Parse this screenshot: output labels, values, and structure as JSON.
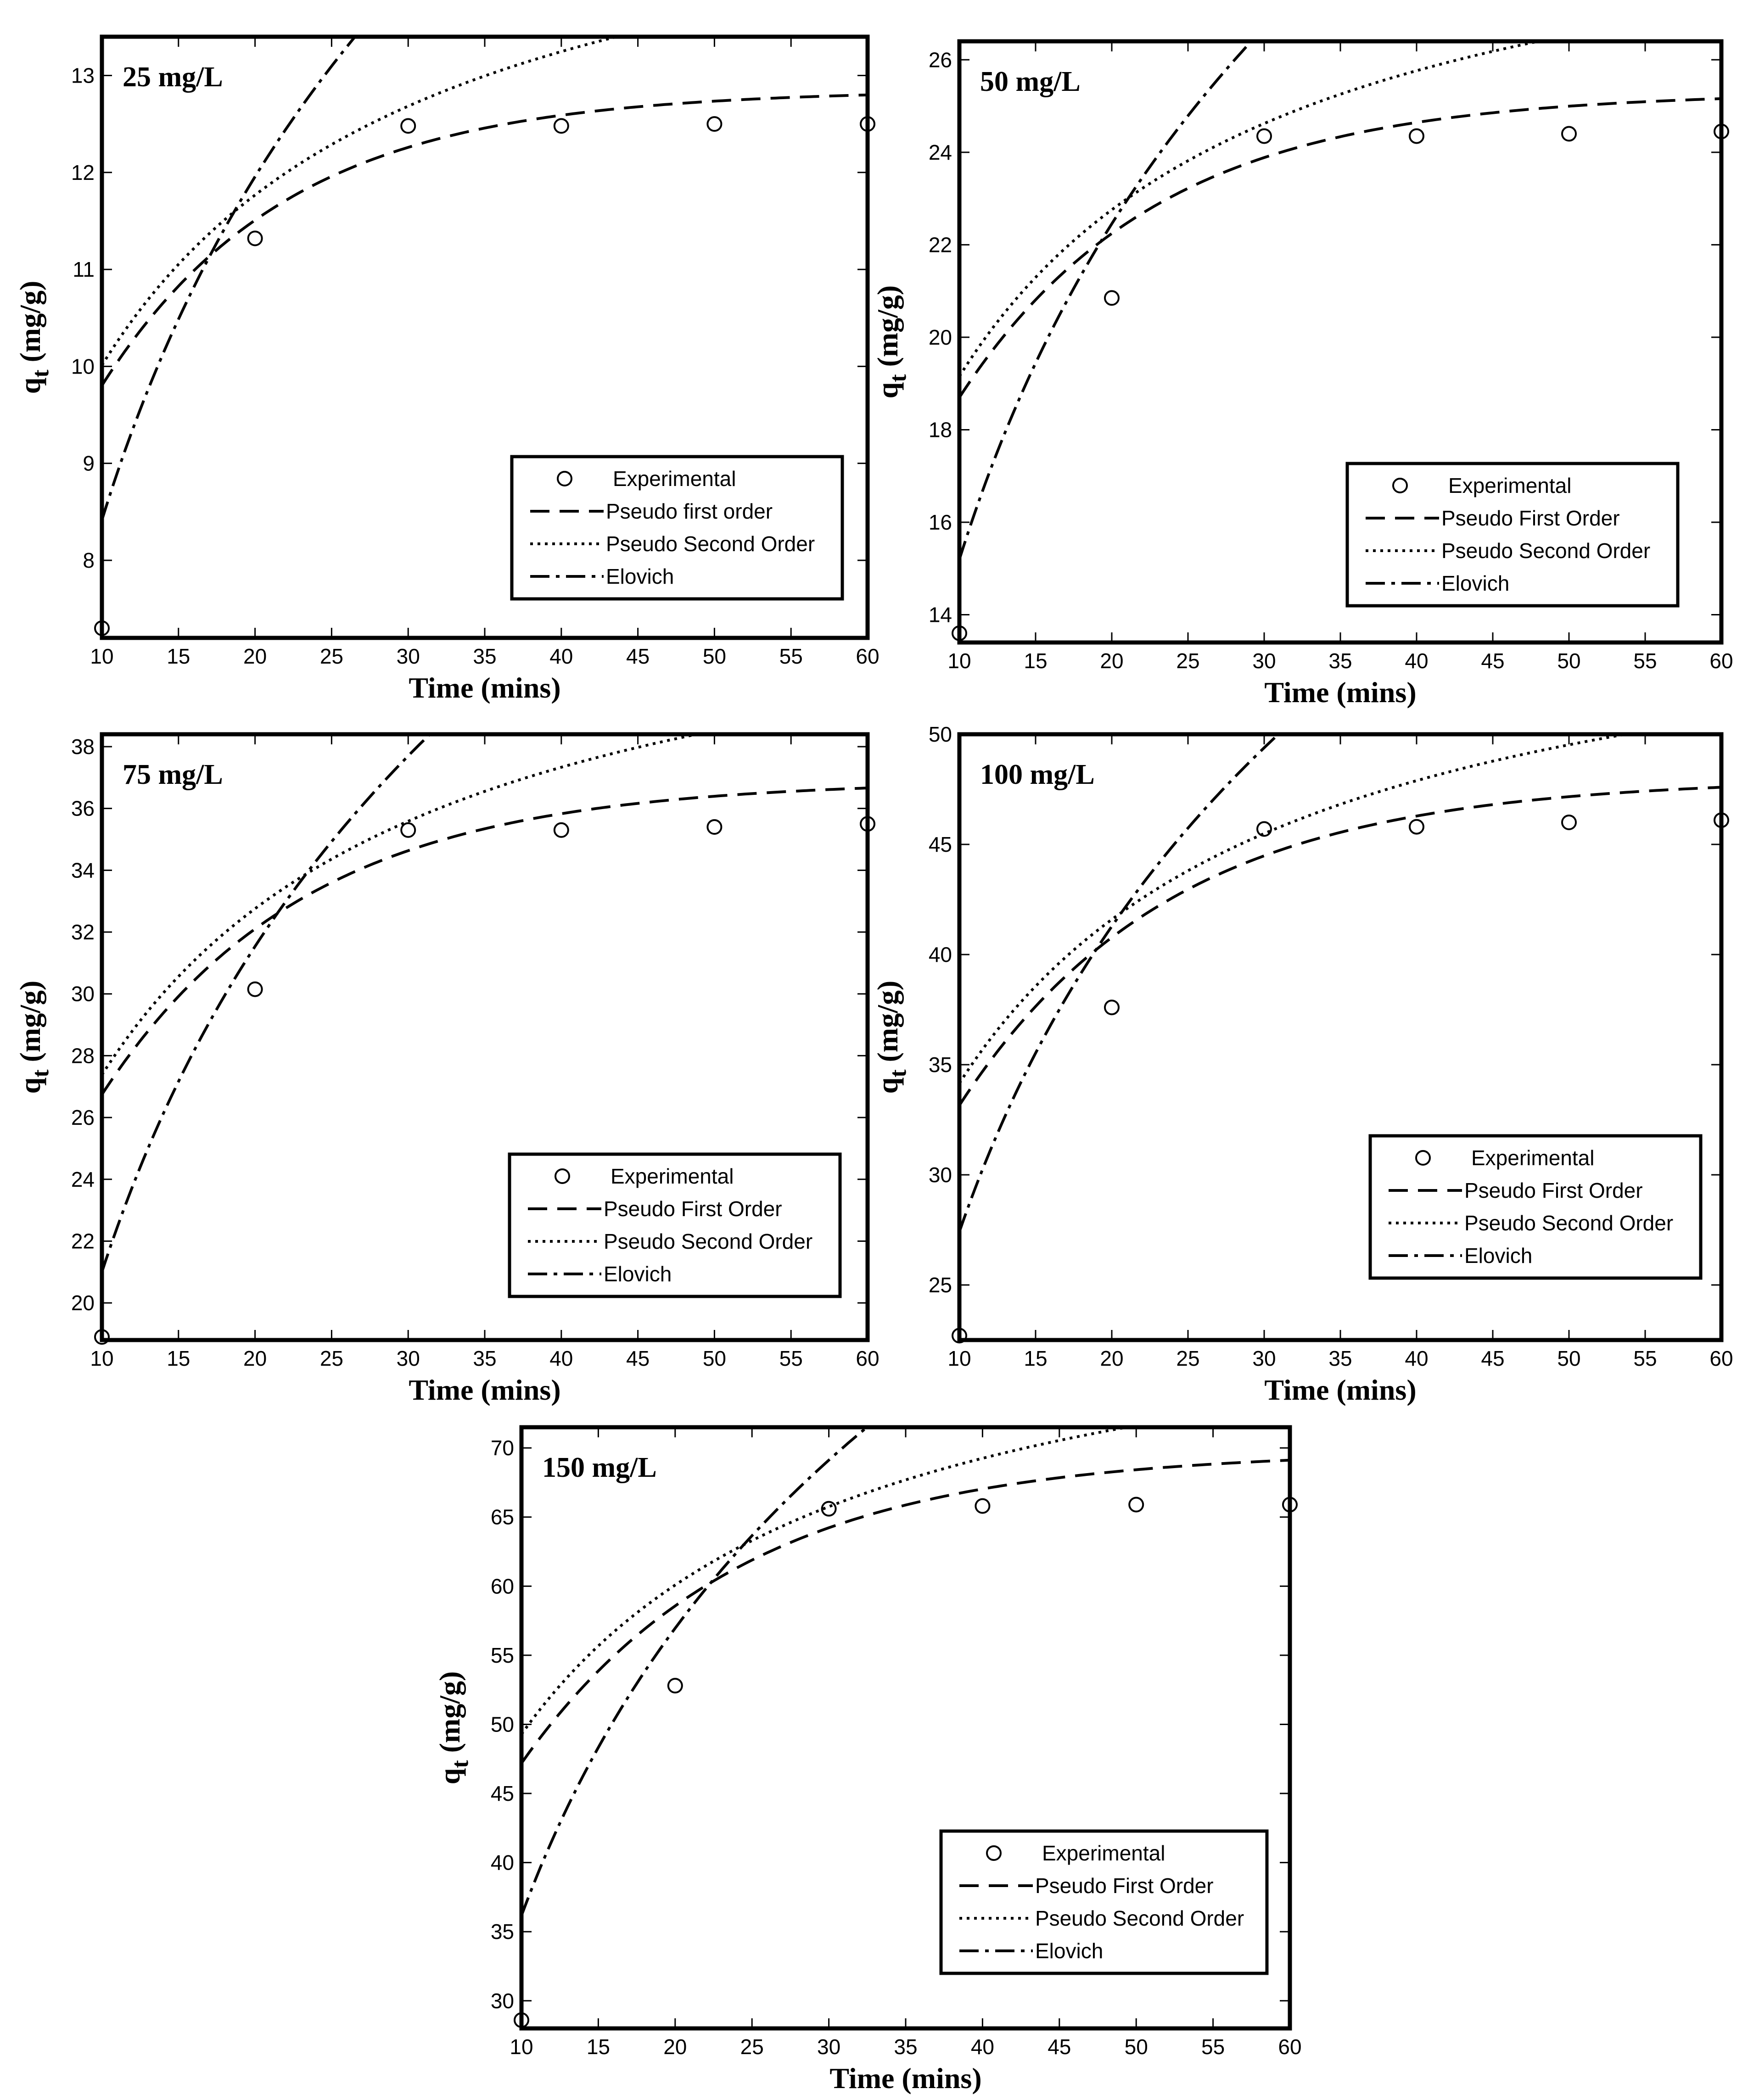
{
  "figure": {
    "colors": {
      "ink": "#000000",
      "background": "#ffffff"
    }
  },
  "chart_data": [
    {
      "type": "scatter+line",
      "title": "25 mg/L",
      "xlabel": "Time (mins)",
      "ylabel": "q",
      "ylabel_sub": "t",
      "ylabel_unit": " (mg/g)",
      "xlim": [
        10,
        60
      ],
      "ylim": [
        7.2,
        13.4
      ],
      "xticks": [
        10,
        15,
        20,
        25,
        30,
        35,
        40,
        45,
        50,
        55,
        60
      ],
      "yticks": [
        8,
        9,
        10,
        11,
        12,
        13
      ],
      "experimental": {
        "x": [
          10,
          20,
          30,
          40,
          50,
          60
        ],
        "y": [
          7.3,
          11.32,
          12.48,
          12.48,
          12.5,
          12.5
        ]
      },
      "fits": {
        "pseudo_first": {
          "qe": 12.85,
          "k1": 0.082,
          "t0": 7.55
        },
        "pseudo_second": {
          "qe": 15.6,
          "k2": 0.0082,
          "t0": 4.0
        },
        "elovich": {
          "a": 8.45,
          "b": 5.11,
          "t0": 10.07
        }
      },
      "legend": [
        "Experimental",
        "Pseudo first order",
        "Pseudo Second Order",
        "Elovich"
      ],
      "legend_position": "bottom-right"
    },
    {
      "type": "scatter+line",
      "title": "50 mg/L",
      "xlabel": "Time (mins)",
      "ylabel": "q",
      "ylabel_sub": "t",
      "ylabel_unit": " (mg/g)",
      "xlim": [
        10,
        60
      ],
      "ylim": [
        13.4,
        26.4
      ],
      "xticks": [
        10,
        15,
        20,
        25,
        30,
        35,
        40,
        45,
        50,
        55,
        60
      ],
      "yticks": [
        14,
        16,
        18,
        20,
        22,
        24,
        26
      ],
      "experimental": {
        "x": [
          10,
          20,
          30,
          40,
          50,
          60
        ],
        "y": [
          13.6,
          20.85,
          24.35,
          24.35,
          24.4,
          24.45
        ]
      },
      "fits": {
        "pseudo_first": {
          "qe": 25.3,
          "k1": 0.077,
          "t0": 7.45
        },
        "pseudo_second": {
          "qe": 30.5,
          "k2": 0.0041,
          "t0": 3.5
        },
        "elovich": {
          "a": 15.3,
          "b": 10.47,
          "t0": 10.1
        }
      },
      "legend": [
        "Experimental",
        "Pseudo First Order",
        "Pseudo Second Order",
        "Elovich"
      ],
      "legend_position": "bottom-right"
    },
    {
      "type": "scatter+line",
      "title": "75 mg/L",
      "xlabel": "Time (mins)",
      "ylabel": "q",
      "ylabel_sub": "t",
      "ylabel_unit": " (mg/g)",
      "xlim": [
        10,
        60
      ],
      "ylim": [
        18.8,
        38.4
      ],
      "xticks": [
        10,
        15,
        20,
        25,
        30,
        35,
        40,
        45,
        50,
        55,
        60
      ],
      "yticks": [
        20,
        22,
        24,
        26,
        28,
        30,
        32,
        34,
        36,
        38
      ],
      "experimental": {
        "x": [
          10,
          20,
          30,
          40,
          50,
          60
        ],
        "y": [
          18.9,
          30.15,
          35.3,
          35.3,
          35.4,
          35.5
        ]
      },
      "fits": {
        "pseudo_first": {
          "qe": 36.9,
          "k1": 0.075,
          "t0": 7.2
        },
        "pseudo_second": {
          "qe": 44.7,
          "k2": 0.0026,
          "t0": 3.6
        },
        "elovich": {
          "a": 21.0,
          "b": 15.2,
          "t0": 10.0
        }
      },
      "legend": [
        "Experimental",
        "Pseudo First Order",
        "Pseudo Second Order",
        "Elovich"
      ],
      "legend_position": "bottom-right"
    },
    {
      "type": "scatter+line",
      "title": "100 mg/L",
      "xlabel": "Time (mins)",
      "ylabel": "q",
      "ylabel_sub": "t",
      "ylabel_unit": " (mg/g)",
      "xlim": [
        10,
        60
      ],
      "ylim": [
        22.5,
        50
      ],
      "xticks": [
        10,
        15,
        20,
        25,
        30,
        35,
        40,
        45,
        50,
        55,
        60
      ],
      "yticks": [
        25,
        30,
        35,
        40,
        45,
        50
      ],
      "experimental": {
        "x": [
          10,
          20,
          30,
          40,
          50,
          60
        ],
        "y": [
          22.7,
          37.6,
          45.7,
          45.8,
          46.0,
          46.1
        ]
      },
      "fits": {
        "pseudo_first": {
          "qe": 48.0,
          "k1": 0.072,
          "t0": 6.3
        },
        "pseudo_second": {
          "qe": 58.0,
          "k2": 0.0019,
          "t0": 3.0
        },
        "elovich": {
          "a": 26.6,
          "b": 20.0,
          "t0": 9.6
        }
      },
      "legend": [
        "Experimental",
        "Pseudo First Order",
        "Pseudo Second Order",
        "Elovich"
      ],
      "legend_position": "bottom-right"
    },
    {
      "type": "scatter+line",
      "title": "150 mg/L",
      "xlabel": "Time (mins)",
      "ylabel": "q",
      "ylabel_sub": "t",
      "ylabel_unit": " (mg/g)",
      "xlim": [
        10,
        60
      ],
      "ylim": [
        28,
        71.5
      ],
      "xticks": [
        10,
        15,
        20,
        25,
        30,
        35,
        40,
        45,
        50,
        55,
        60
      ],
      "yticks": [
        30,
        35,
        40,
        45,
        50,
        55,
        60,
        65,
        70
      ],
      "experimental": {
        "x": [
          10,
          20,
          30,
          40,
          50,
          60
        ],
        "y": [
          28.6,
          52.8,
          65.6,
          65.8,
          65.9,
          65.9
        ]
      },
      "fits": {
        "pseudo_first": {
          "qe": 69.8,
          "k1": 0.07,
          "t0": 6.1
        },
        "pseudo_second": {
          "qe": 84.0,
          "k2": 0.0013,
          "t0": 3.0
        },
        "elovich": {
          "a": 33.0,
          "b": 30.0,
          "t0": 9.0
        }
      },
      "legend": [
        "Experimental",
        "Pseudo First Order",
        "Pseudo Second Order",
        "Elovich"
      ],
      "legend_position": "bottom-right"
    }
  ]
}
